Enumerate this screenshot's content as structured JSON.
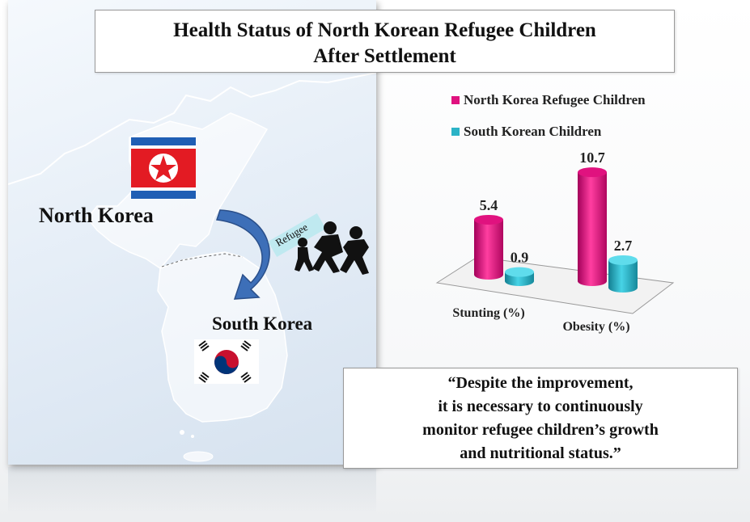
{
  "title": {
    "line1": "Health Status of North Korean Refugee Children",
    "line2": "After Settlement"
  },
  "map": {
    "north_korea_label": "North Korea",
    "south_korea_label": "South Korea",
    "refugee_label": "Refugee"
  },
  "colors": {
    "north_korea_series": "#e0127f",
    "south_korea_series": "#2bb3c7"
  },
  "quote": {
    "line1": "“Despite the improvement,",
    "line2": "it is necessary to continuously",
    "line3": "monitor refugee children’s growth",
    "line4": "and nutritional status.”"
  },
  "chart_data": {
    "type": "bar",
    "categories": [
      "Stunting (%)",
      "Obesity (%)"
    ],
    "series": [
      {
        "name": "North Korea Refugee Children",
        "values": [
          5.4,
          10.7
        ],
        "labels": [
          "5.4",
          "10.7"
        ]
      },
      {
        "name": "South Korean Children",
        "values": [
          0.9,
          2.7
        ],
        "labels": [
          "0.9",
          "2.7"
        ]
      }
    ],
    "legend_position": "top",
    "grid": false
  }
}
